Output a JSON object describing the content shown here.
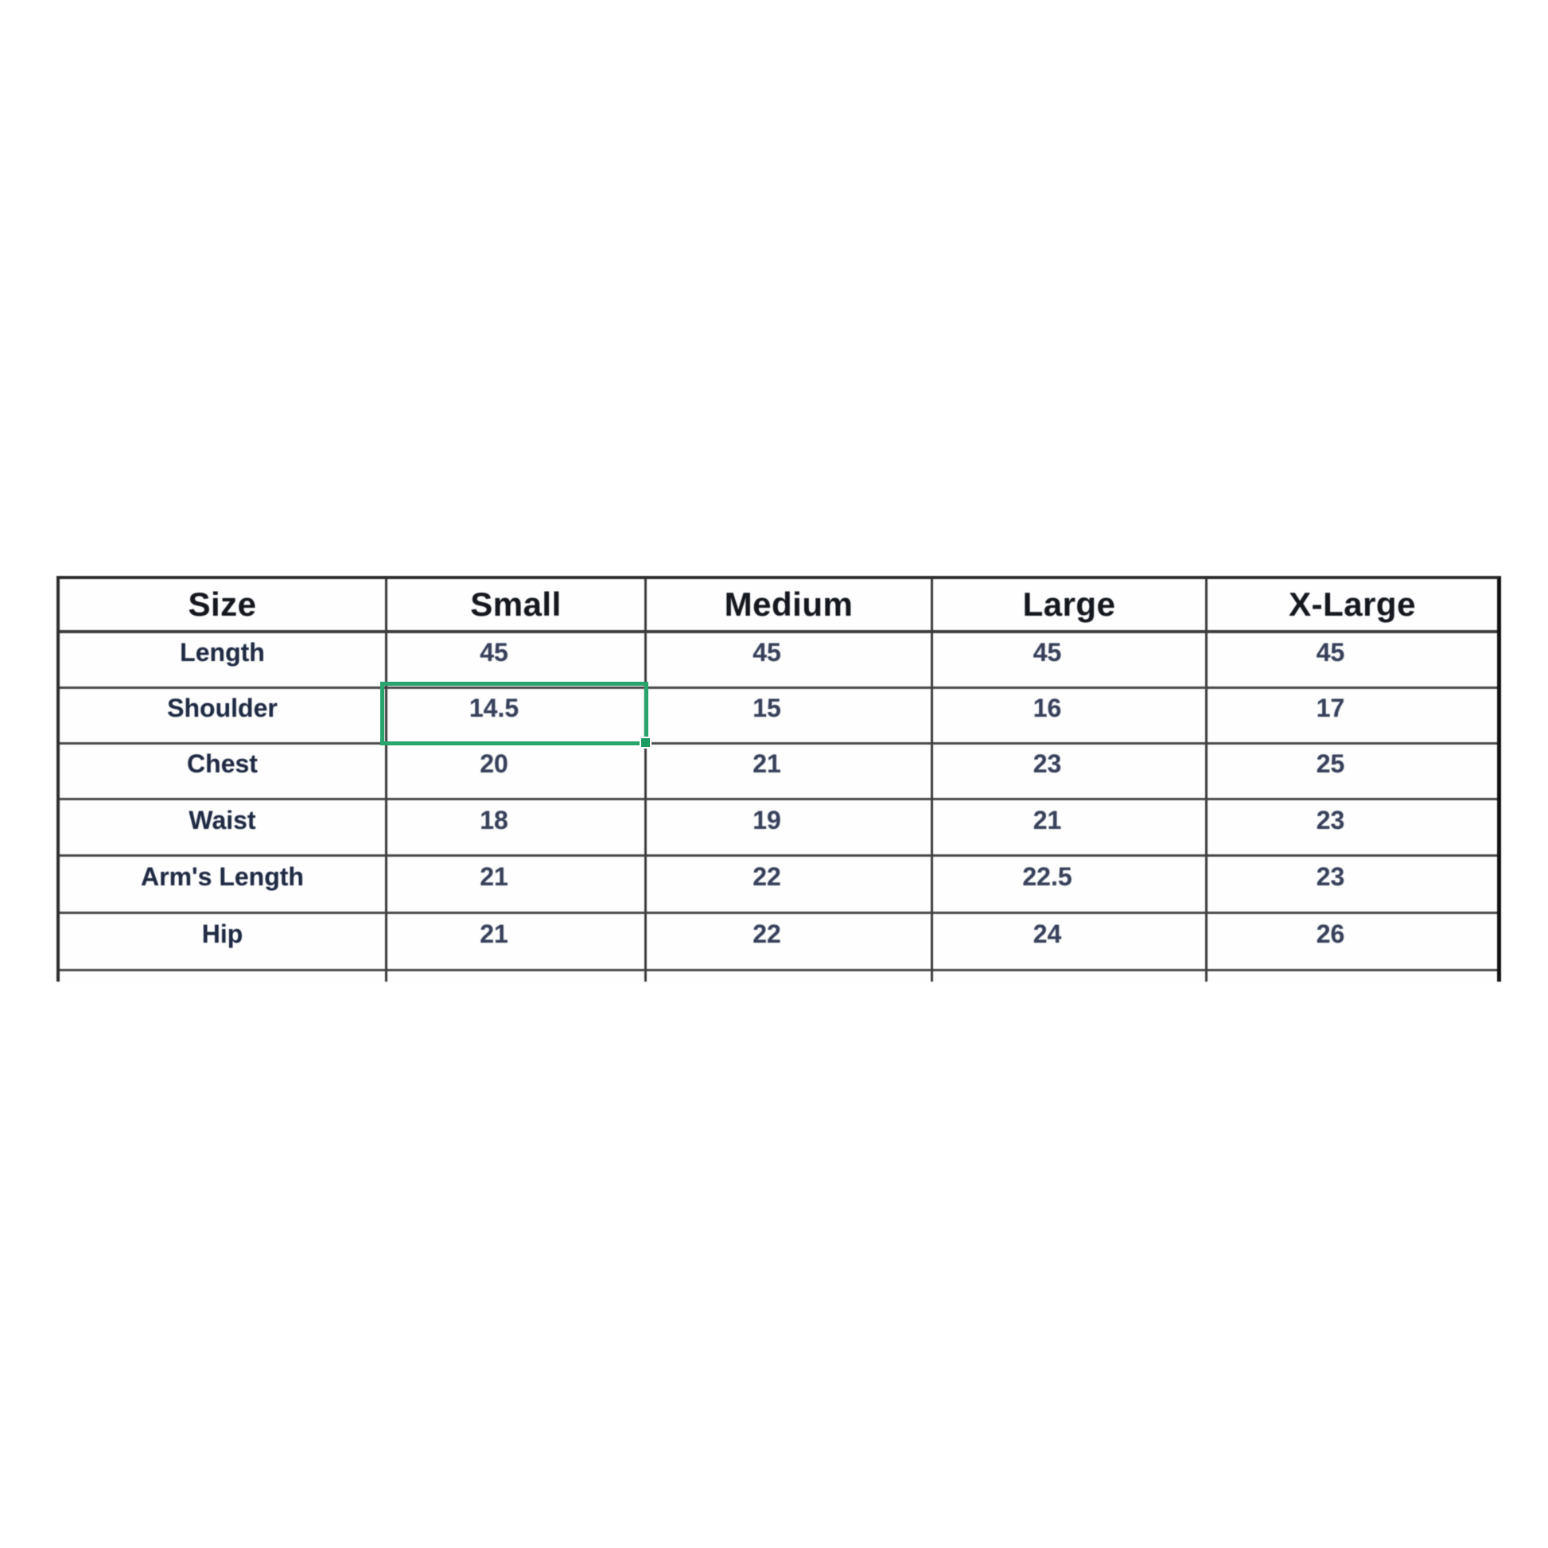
{
  "table": {
    "headers": [
      "Size",
      "Small",
      "Medium",
      "Large",
      "X-Large"
    ],
    "rows": [
      {
        "label": "Length",
        "values": [
          "45",
          "45",
          "45",
          "45"
        ]
      },
      {
        "label": "Shoulder",
        "values": [
          "14.5",
          "15",
          "16",
          "17"
        ]
      },
      {
        "label": "Chest",
        "values": [
          "20",
          "21",
          "23",
          "25"
        ]
      },
      {
        "label": "Waist",
        "values": [
          "18",
          "19",
          "21",
          "23"
        ]
      },
      {
        "label": "Arm's Length",
        "values": [
          "21",
          "22",
          "22.5",
          "23"
        ]
      },
      {
        "label": "Hip",
        "values": [
          "21",
          "22",
          "24",
          "26"
        ]
      }
    ],
    "selection": {
      "row": "Shoulder",
      "column": "Small",
      "selected_value": "14.5",
      "border_color": "#28a46d",
      "handle_color": "#1d9b61"
    },
    "colors": {
      "grid_line": "#474747",
      "outer_border": "#2c2c2c",
      "right_border": "#121212",
      "header_text": "#15181d",
      "label_text": "#202a42",
      "value_text": "#39415a",
      "background": "#ffffff"
    }
  }
}
